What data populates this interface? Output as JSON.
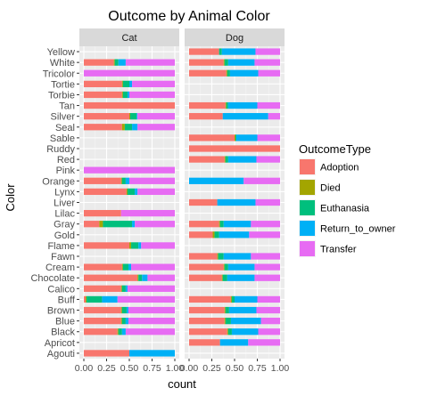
{
  "chart_data": {
    "type": "bar",
    "title": "Outcome by Animal Color",
    "xlabel": "count",
    "ylabel": "Color",
    "xlim": [
      0,
      1
    ],
    "x_ticks": [
      "0.00",
      "0.25",
      "0.50",
      "0.75",
      "1.00"
    ],
    "grid": true,
    "legend_position": "right",
    "legend_title": "OutcomeType",
    "outcomes": [
      "Adoption",
      "Died",
      "Euthanasia",
      "Return_to_owner",
      "Transfer"
    ],
    "outcome_colors": {
      "Adoption": "#F8766D",
      "Died": "#A3A500",
      "Euthanasia": "#00BF7D",
      "Return_to_owner": "#00B0F6",
      "Transfer": "#E76BF3"
    },
    "categories": [
      "Yellow",
      "White",
      "Tricolor",
      "Tortie",
      "Torbie",
      "Tan",
      "Silver",
      "Seal",
      "Sable",
      "Ruddy",
      "Red",
      "Pink",
      "Orange",
      "Lynx",
      "Liver",
      "Lilac",
      "Gray",
      "Gold",
      "Flame",
      "Fawn",
      "Cream",
      "Chocolate",
      "Calico",
      "Buff",
      "Brown",
      "Blue",
      "Black",
      "Apricot",
      "Agouti"
    ],
    "facets": [
      {
        "name": "Cat",
        "bars": {
          "White": [
            0.33,
            0.01,
            0.04,
            0.08,
            0.54
          ],
          "Tricolor": [
            0,
            0,
            0,
            0,
            1.0
          ],
          "Tortie": [
            0.42,
            0.01,
            0.07,
            0.03,
            0.47
          ],
          "Torbie": [
            0.42,
            0.01,
            0.05,
            0.02,
            0.5
          ],
          "Tan": [
            1.0,
            0,
            0,
            0,
            0
          ],
          "Silver": [
            0.5,
            0.01,
            0.07,
            0.01,
            0.41
          ],
          "Seal": [
            0.42,
            0.03,
            0.08,
            0.06,
            0.41
          ],
          "Pink": [
            0,
            0,
            0,
            0,
            1.0
          ],
          "Orange": [
            0.41,
            0.01,
            0.04,
            0.04,
            0.5
          ],
          "Lynx": [
            0.47,
            0.01,
            0.08,
            0.03,
            0.41
          ],
          "Lilac": [
            0.41,
            0,
            0,
            0,
            0.59
          ],
          "Gray": [
            0.17,
            0.04,
            0.32,
            0.03,
            0.44
          ],
          "Flame": [
            0.5,
            0.02,
            0.08,
            0.03,
            0.37
          ],
          "Cream": [
            0.42,
            0.01,
            0.06,
            0.03,
            0.48
          ],
          "Chocolate": [
            0.59,
            0.01,
            0.04,
            0.06,
            0.3
          ],
          "Calico": [
            0.41,
            0.01,
            0.04,
            0.02,
            0.52
          ],
          "Buff": [
            0.02,
            0.01,
            0.17,
            0.17,
            0.63
          ],
          "Brown": [
            0.41,
            0.01,
            0.05,
            0.02,
            0.51
          ],
          "Blue": [
            0.41,
            0.01,
            0.04,
            0.03,
            0.51
          ],
          "Black": [
            0.37,
            0.01,
            0.04,
            0.04,
            0.54
          ],
          "Agouti": [
            0.5,
            0,
            0,
            0.5,
            0
          ]
        }
      },
      {
        "name": "Dog",
        "bars": {
          "Yellow": [
            0.33,
            0,
            0.03,
            0.37,
            0.27
          ],
          "White": [
            0.38,
            0.01,
            0.04,
            0.29,
            0.28
          ],
          "Tricolor": [
            0.41,
            0.01,
            0.03,
            0.31,
            0.24
          ],
          "Tan": [
            0.4,
            0.01,
            0.02,
            0.32,
            0.25
          ],
          "Silver": [
            0.37,
            0,
            0,
            0.5,
            0.13
          ],
          "Sable": [
            0.5,
            0.01,
            0.01,
            0.23,
            0.25
          ],
          "Ruddy": [
            1.0,
            0,
            0,
            0,
            0
          ],
          "Red": [
            0.39,
            0.01,
            0.03,
            0.31,
            0.26
          ],
          "Orange": [
            0,
            0,
            0,
            0.6,
            0.4
          ],
          "Liver": [
            0.31,
            0,
            0,
            0.42,
            0.27
          ],
          "Gray": [
            0.33,
            0.01,
            0.04,
            0.3,
            0.32
          ],
          "Gold": [
            0.26,
            0.02,
            0.05,
            0.33,
            0.34
          ],
          "Fawn": [
            0.31,
            0.01,
            0.06,
            0.3,
            0.32
          ],
          "Cream": [
            0.38,
            0.01,
            0.04,
            0.29,
            0.28
          ],
          "Chocolate": [
            0.36,
            0.01,
            0.05,
            0.3,
            0.28
          ],
          "Buff": [
            0.46,
            0.01,
            0.03,
            0.25,
            0.25
          ],
          "Brown": [
            0.39,
            0.01,
            0.04,
            0.3,
            0.26
          ],
          "Blue": [
            0.39,
            0.01,
            0.06,
            0.33,
            0.21
          ],
          "Black": [
            0.42,
            0.01,
            0.04,
            0.29,
            0.24
          ],
          "Apricot": [
            0.34,
            0,
            0,
            0.31,
            0.35
          ]
        }
      }
    ]
  }
}
